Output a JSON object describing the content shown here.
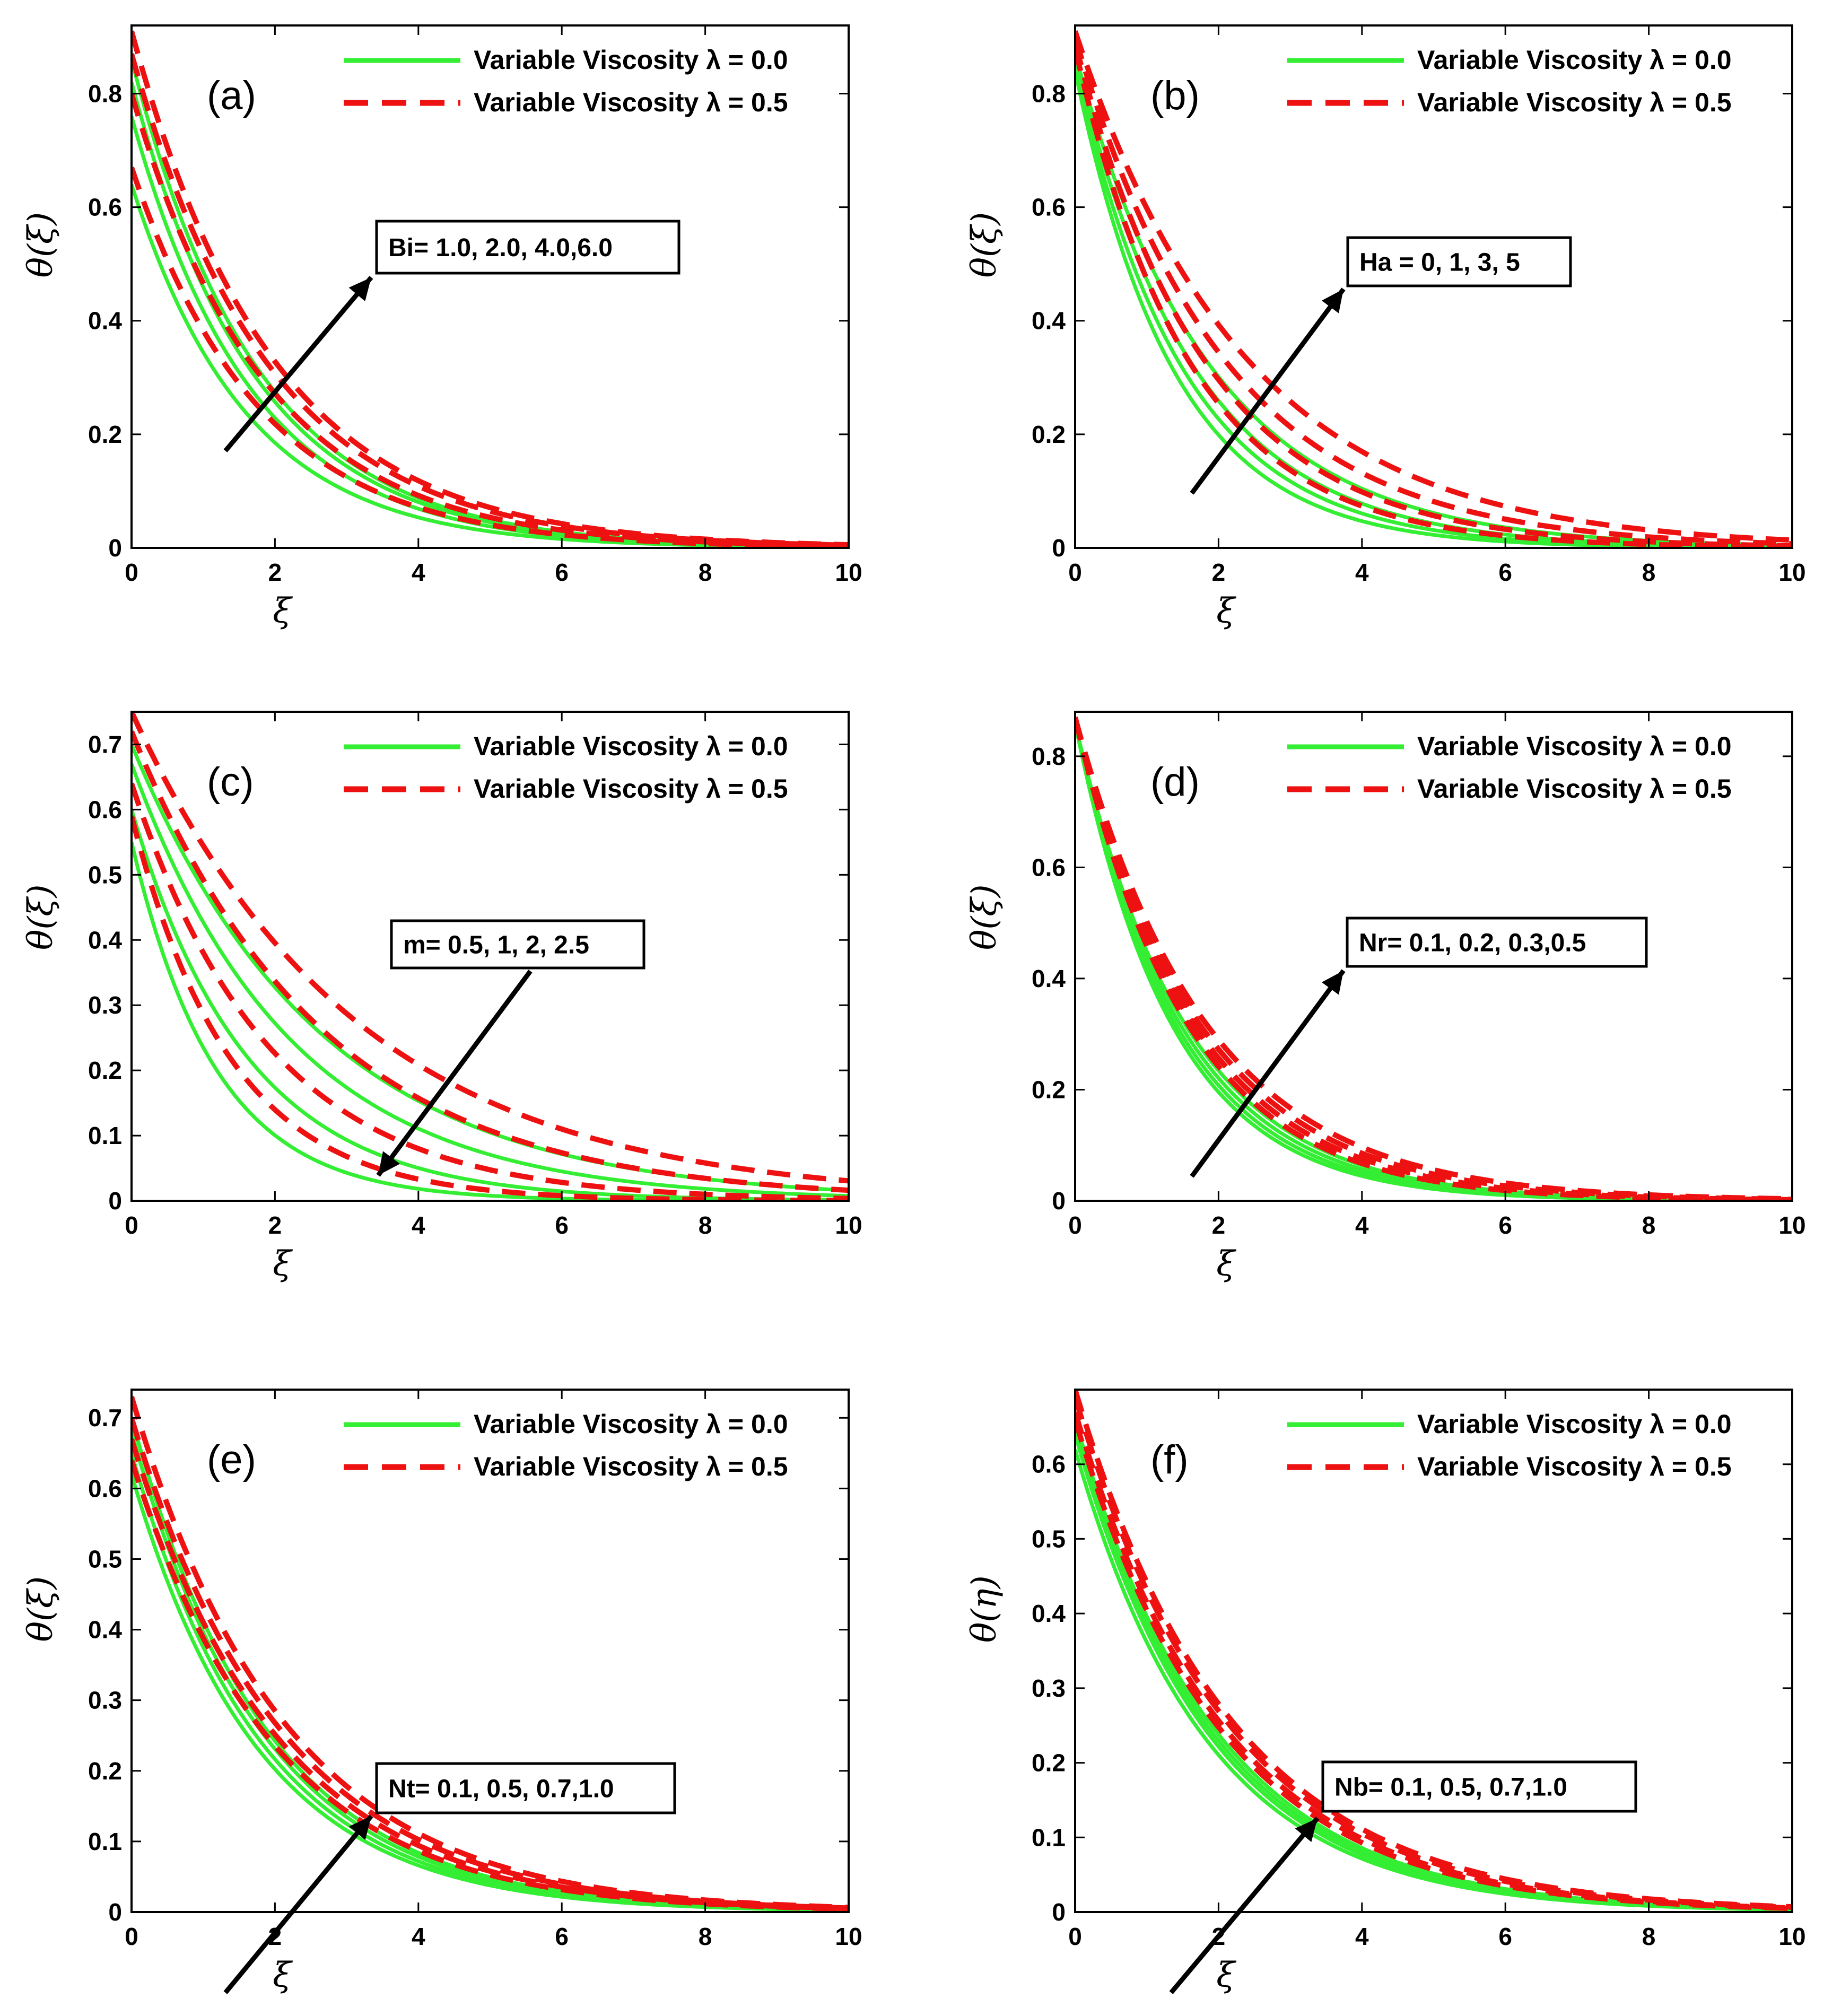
{
  "colors": {
    "lambda_0": "#33ee33",
    "lambda_05": "#ee1111",
    "axes": "#000000",
    "arrow": "#000000"
  },
  "chart_data": [
    {
      "panel": "(a)",
      "type": "line",
      "xlabel": "ξ",
      "ylabel": "θ(ξ)",
      "xlim": [
        0,
        10
      ],
      "ylim": [
        0,
        0.92
      ],
      "xticks": [
        "0",
        "2",
        "4",
        "6",
        "8",
        "10"
      ],
      "yticks": [
        "0",
        "0.2",
        "0.4",
        "0.6",
        "0.8"
      ],
      "legend": [
        "Variable Viscosity λ = 0.0",
        "Variable Viscosity λ = 0.5"
      ],
      "legend_position": "top-right",
      "annotation": {
        "text": "Bi= 1.0, 2.0, 4.0,6.0",
        "arrow": "up-right"
      },
      "series": [
        {
          "lambda": 0.0,
          "curves": [
            {
              "y0": 0.64,
              "decay": 0.62
            },
            {
              "y0": 0.76,
              "decay": 0.6
            },
            {
              "y0": 0.82,
              "decay": 0.58
            },
            {
              "y0": 0.86,
              "decay": 0.57
            }
          ]
        },
        {
          "lambda": 0.5,
          "curves": [
            {
              "y0": 0.67,
              "decay": 0.56
            },
            {
              "y0": 0.8,
              "decay": 0.54
            },
            {
              "y0": 0.87,
              "decay": 0.52
            },
            {
              "y0": 0.91,
              "decay": 0.51
            }
          ]
        }
      ]
    },
    {
      "panel": "(b)",
      "type": "line",
      "xlabel": "ξ",
      "ylabel": "θ(ξ)",
      "xlim": [
        0,
        10
      ],
      "ylim": [
        0,
        0.92
      ],
      "xticks": [
        "0",
        "2",
        "4",
        "6",
        "8",
        "10"
      ],
      "yticks": [
        "0",
        "0.2",
        "0.4",
        "0.6",
        "0.8"
      ],
      "legend": [
        "Variable Viscosity λ = 0.0",
        "Variable Viscosity λ = 0.5"
      ],
      "legend_position": "top-right",
      "annotation": {
        "text": "Ha = 0, 1, 3, 5",
        "arrow": "up-right"
      },
      "series": [
        {
          "lambda": 0.0,
          "curves": [
            {
              "y0": 0.84,
              "decay": 0.72
            },
            {
              "y0": 0.85,
              "decay": 0.66
            },
            {
              "y0": 0.86,
              "decay": 0.6
            },
            {
              "y0": 0.87,
              "decay": 0.53
            }
          ]
        },
        {
          "lambda": 0.5,
          "curves": [
            {
              "y0": 0.88,
              "decay": 0.62
            },
            {
              "y0": 0.89,
              "decay": 0.55
            },
            {
              "y0": 0.9,
              "decay": 0.48
            },
            {
              "y0": 0.91,
              "decay": 0.42
            }
          ]
        }
      ]
    },
    {
      "panel": "(c)",
      "type": "line",
      "xlabel": "ξ",
      "ylabel": "θ(ξ)",
      "xlim": [
        0,
        10
      ],
      "ylim": [
        0,
        0.75
      ],
      "xticks": [
        "0",
        "2",
        "4",
        "6",
        "8",
        "10"
      ],
      "yticks": [
        "0",
        "0.1",
        "0.2",
        "0.3",
        "0.4",
        "0.5",
        "0.6",
        "0.7"
      ],
      "legend": [
        "Variable Viscosity λ = 0.0",
        "Variable Viscosity λ = 0.5"
      ],
      "legend_position": "top-right",
      "annotation": {
        "text": "m= 0.5, 1, 2, 2.5",
        "arrow": "down-left"
      },
      "series": [
        {
          "lambda": 0.0,
          "curves": [
            {
              "y0": 0.7,
              "decay": 0.38
            },
            {
              "y0": 0.67,
              "decay": 0.45
            },
            {
              "y0": 0.6,
              "decay": 0.62
            },
            {
              "y0": 0.55,
              "decay": 0.85
            }
          ]
        },
        {
          "lambda": 0.5,
          "curves": [
            {
              "y0": 0.75,
              "decay": 0.32
            },
            {
              "y0": 0.72,
              "decay": 0.38
            },
            {
              "y0": 0.64,
              "decay": 0.52
            },
            {
              "y0": 0.59,
              "decay": 0.72
            }
          ]
        }
      ]
    },
    {
      "panel": "(d)",
      "type": "line",
      "xlabel": "ξ",
      "ylabel": "θ(ξ)",
      "xlim": [
        0,
        10
      ],
      "ylim": [
        0,
        0.88
      ],
      "xticks": [
        "0",
        "2",
        "4",
        "6",
        "8",
        "10"
      ],
      "yticks": [
        "0",
        "0.2",
        "0.4",
        "0.6",
        "0.8"
      ],
      "legend": [
        "Variable Viscosity λ = 0.0",
        "Variable Viscosity λ = 0.5"
      ],
      "legend_position": "top-right",
      "annotation": {
        "text": "Nr= 0.1, 0.2, 0.3,0.5",
        "arrow": "up-right"
      },
      "series": [
        {
          "lambda": 0.0,
          "curves": [
            {
              "y0": 0.86,
              "decay": 0.74
            },
            {
              "y0": 0.86,
              "decay": 0.71
            },
            {
              "y0": 0.86,
              "decay": 0.68
            },
            {
              "y0": 0.86,
              "decay": 0.65
            }
          ]
        },
        {
          "lambda": 0.5,
          "curves": [
            {
              "y0": 0.87,
              "decay": 0.64
            },
            {
              "y0": 0.87,
              "decay": 0.61
            },
            {
              "y0": 0.87,
              "decay": 0.58
            },
            {
              "y0": 0.87,
              "decay": 0.55
            }
          ]
        }
      ]
    },
    {
      "panel": "(e)",
      "type": "line",
      "xlabel": "ξ",
      "ylabel": "θ(ξ)",
      "xlim": [
        0,
        10
      ],
      "ylim": [
        0,
        0.74
      ],
      "xticks": [
        "0",
        "2",
        "4",
        "6",
        "8",
        "10"
      ],
      "yticks": [
        "0",
        "0.1",
        "0.2",
        "0.3",
        "0.4",
        "0.5",
        "0.6",
        "0.7"
      ],
      "legend": [
        "Variable Viscosity λ = 0.0",
        "Variable Viscosity λ = 0.5"
      ],
      "legend_position": "top-right",
      "annotation": {
        "text": "Nt= 0.1, 0.5, 0.7,1.0",
        "arrow": "up-right"
      },
      "series": [
        {
          "lambda": 0.0,
          "curves": [
            {
              "y0": 0.62,
              "decay": 0.56
            },
            {
              "y0": 0.65,
              "decay": 0.55
            },
            {
              "y0": 0.68,
              "decay": 0.54
            },
            {
              "y0": 0.7,
              "decay": 0.53
            }
          ]
        },
        {
          "lambda": 0.5,
          "curves": [
            {
              "y0": 0.64,
              "decay": 0.5
            },
            {
              "y0": 0.67,
              "decay": 0.49
            },
            {
              "y0": 0.7,
              "decay": 0.48
            },
            {
              "y0": 0.73,
              "decay": 0.47
            }
          ]
        }
      ]
    },
    {
      "panel": "(f)",
      "type": "line",
      "xlabel": "ξ",
      "ylabel": "θ(η)",
      "xlim": [
        0,
        10
      ],
      "ylim": [
        0,
        0.7
      ],
      "xticks": [
        "0",
        "2",
        "4",
        "6",
        "8",
        "10"
      ],
      "yticks": [
        "0",
        "0.1",
        "0.2",
        "0.3",
        "0.4",
        "0.5",
        "0.6"
      ],
      "legend": [
        "Variable Viscosity λ = 0.0",
        "Variable Viscosity λ = 0.5"
      ],
      "legend_position": "top-right",
      "annotation": {
        "text": "Nb= 0.1, 0.5, 0.7,1.0",
        "arrow": "up-right"
      },
      "series": [
        {
          "lambda": 0.0,
          "curves": [
            {
              "y0": 0.62,
              "decay": 0.54
            },
            {
              "y0": 0.64,
              "decay": 0.53
            },
            {
              "y0": 0.65,
              "decay": 0.52
            },
            {
              "y0": 0.66,
              "decay": 0.51
            }
          ]
        },
        {
          "lambda": 0.5,
          "curves": [
            {
              "y0": 0.66,
              "decay": 0.49
            },
            {
              "y0": 0.67,
              "decay": 0.48
            },
            {
              "y0": 0.69,
              "decay": 0.47
            },
            {
              "y0": 0.7,
              "decay": 0.46
            }
          ]
        }
      ]
    }
  ]
}
